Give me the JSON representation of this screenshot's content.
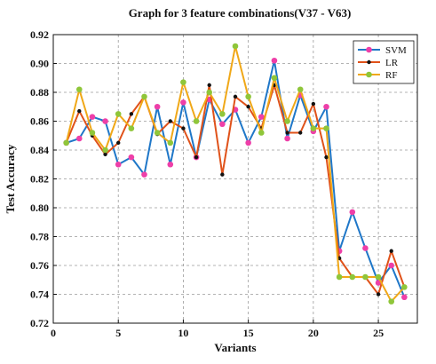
{
  "chart_data": {
    "type": "line",
    "title": "Graph for 3 feature combinations(V37 - V63)",
    "xlabel": "Variants",
    "ylabel": "Test Accuracy",
    "xlim": [
      0,
      28
    ],
    "ylim": [
      0.72,
      0.92
    ],
    "xticks": [
      0,
      5,
      10,
      15,
      20,
      25
    ],
    "yticks": [
      0.72,
      0.74,
      0.76,
      0.78,
      0.8,
      0.82,
      0.84,
      0.86,
      0.88,
      0.9,
      0.92
    ],
    "grid": true,
    "legend_position": "top-right",
    "x": [
      1,
      2,
      3,
      4,
      5,
      6,
      7,
      8,
      9,
      10,
      11,
      12,
      13,
      14,
      15,
      16,
      17,
      18,
      19,
      20,
      21,
      22,
      23,
      24,
      25,
      26,
      27
    ],
    "series": [
      {
        "name": "SVM",
        "color": "#1f77c8",
        "marker_color": "#ee3fa8",
        "marker": "circle",
        "values": [
          0.845,
          0.848,
          0.863,
          0.86,
          0.83,
          0.835,
          0.823,
          0.87,
          0.83,
          0.873,
          0.835,
          0.875,
          0.858,
          0.868,
          0.845,
          0.863,
          0.902,
          0.848,
          0.878,
          0.853,
          0.87,
          0.77,
          0.797,
          0.772,
          0.748,
          0.76,
          0.738
        ]
      },
      {
        "name": "LR",
        "color": "#e0521a",
        "marker_color": "#111111",
        "marker": "dot",
        "values": [
          0.845,
          0.867,
          0.85,
          0.837,
          0.845,
          0.865,
          0.877,
          0.851,
          0.86,
          0.855,
          0.835,
          0.885,
          0.823,
          0.877,
          0.87,
          0.855,
          0.885,
          0.852,
          0.852,
          0.872,
          0.835,
          0.765,
          0.752,
          0.752,
          0.74,
          0.77,
          0.745
        ]
      },
      {
        "name": "RF",
        "color": "#f0a818",
        "marker_color": "#8fc63a",
        "marker": "circle",
        "values": [
          0.845,
          0.882,
          0.852,
          0.84,
          0.865,
          0.855,
          0.877,
          0.852,
          0.845,
          0.887,
          0.86,
          0.88,
          0.865,
          0.912,
          0.877,
          0.852,
          0.89,
          0.86,
          0.882,
          0.855,
          0.855,
          0.752,
          0.752,
          0.752,
          0.752,
          0.735,
          0.745
        ]
      }
    ]
  }
}
